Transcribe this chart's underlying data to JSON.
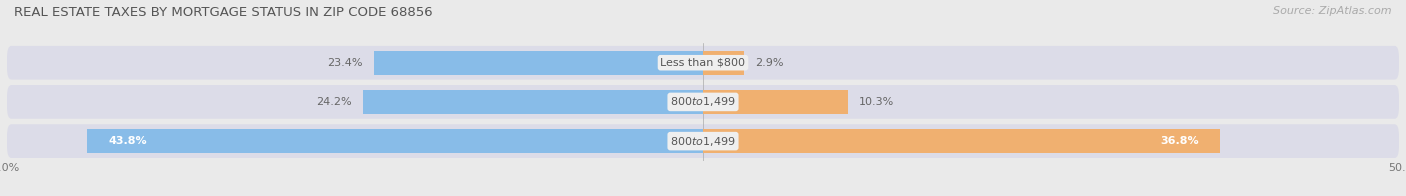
{
  "title": "REAL ESTATE TAXES BY MORTGAGE STATUS IN ZIP CODE 68856",
  "source": "Source: ZipAtlas.com",
  "rows": [
    {
      "label": "Less than $800",
      "without_mortgage": 23.4,
      "with_mortgage": 2.9,
      "wom_text_inside": false,
      "wm_text_inside": false
    },
    {
      "label": "$800 to $1,499",
      "without_mortgage": 24.2,
      "with_mortgage": 10.3,
      "wom_text_inside": false,
      "wm_text_inside": false
    },
    {
      "label": "$800 to $1,499",
      "without_mortgage": 43.8,
      "with_mortgage": 36.8,
      "wom_text_inside": true,
      "wm_text_inside": true
    }
  ],
  "xlim": [
    -50,
    50
  ],
  "color_without": "#88bce8",
  "color_with": "#f0b070",
  "background_color": "#eaeaea",
  "row_bg_color": "#e0e0e8",
  "bar_height": 0.62,
  "title_fontsize": 9.5,
  "source_fontsize": 8,
  "label_fontsize": 8,
  "value_fontsize": 8,
  "tick_fontsize": 8,
  "legend_fontsize": 8.5,
  "text_dark": "#555555",
  "text_white": "#ffffff",
  "text_outside_color": "#666666"
}
